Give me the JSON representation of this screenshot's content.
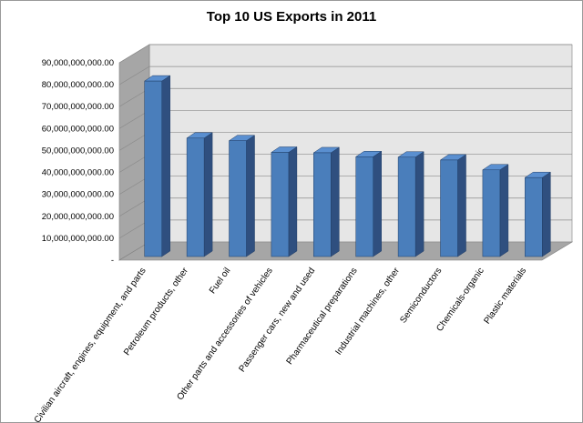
{
  "chart_data": {
    "type": "bar",
    "title": "Top 10 US Exports in 2011",
    "categories": [
      "Civilian aircraft, engines, equipment, and parts",
      "Petroleum products, other",
      "Fuel oil",
      "Other parts and accessories of vehicles",
      "Passenger cars, new and used",
      "Pharmaceutical preparations",
      "Industrial machines, other",
      "Semiconductors",
      "Chemicals-organic",
      "Plastic materials"
    ],
    "values": [
      80000000000,
      54000000000,
      52800000000,
      47500000000,
      47300000000,
      45500000000,
      45300000000,
      44000000000,
      39500000000,
      36000000000
    ],
    "ylim": [
      0,
      90000000000
    ],
    "yticks": [
      {
        "value": 0,
        "label": "-"
      },
      {
        "value": 10000000000,
        "label": "10,000,000,000.00"
      },
      {
        "value": 20000000000,
        "label": "20,000,000,000.00"
      },
      {
        "value": 30000000000,
        "label": "30,000,000,000.00"
      },
      {
        "value": 40000000000,
        "label": "40,000,000,000.00"
      },
      {
        "value": 50000000000,
        "label": "50,000,000,000.00"
      },
      {
        "value": 60000000000,
        "label": "60,000,000,000.00"
      },
      {
        "value": 70000000000,
        "label": "70,000,000,000.00"
      },
      {
        "value": 80000000000,
        "label": "80,000,000,000.00"
      },
      {
        "value": 90000000000,
        "label": "90,000,000,000.00"
      }
    ],
    "grid": true,
    "xlabel": "",
    "ylabel": "",
    "colors": {
      "bar_front": "#4a7ebb",
      "bar_side": "#2f4f7f",
      "bar_top": "#5a8fd0",
      "wall": "#e6e6e6",
      "side_wall": "#a6a6a6",
      "floor": "#a6a6a6",
      "grid": "#8c8c8c"
    }
  }
}
